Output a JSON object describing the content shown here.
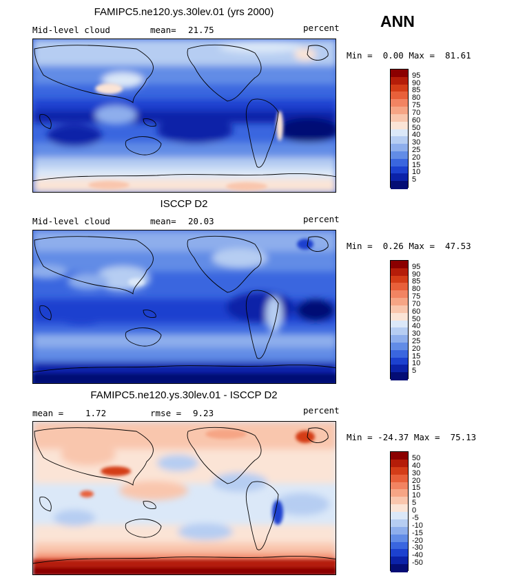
{
  "season": "ANN",
  "panels": [
    {
      "title": "FAMIPC5.ne120.ys.30lev.01 (yrs 2000)",
      "field": "Mid-level cloud",
      "stat1_label": "mean=",
      "stat1_value": "21.75",
      "stat2_label": "",
      "stat2_value": "",
      "units": "percent",
      "min_label": "Min =",
      "min_value": "0.00",
      "max_label": "Max =",
      "max_value": "81.61",
      "colorbar": {
        "levels": [
          "95",
          "90",
          "85",
          "80",
          "75",
          "70",
          "60",
          "50",
          "40",
          "30",
          "25",
          "20",
          "15",
          "10",
          "5"
        ],
        "colors": [
          "#8b0000",
          "#b51d09",
          "#d43d18",
          "#e8603a",
          "#f28462",
          "#f6a585",
          "#f9c6ad",
          "#fbe4d6",
          "#dbe8f8",
          "#b6cdf2",
          "#8eaeec",
          "#628ce6",
          "#3a66df",
          "#1c41cf",
          "#0b22a8",
          "#040d75"
        ]
      }
    },
    {
      "title": "ISCCP D2",
      "field": "Mid-level cloud",
      "stat1_label": "mean=",
      "stat1_value": "20.03",
      "stat2_label": "",
      "stat2_value": "",
      "units": "percent",
      "min_label": "Min =",
      "min_value": "0.26",
      "max_label": "Max =",
      "max_value": "47.53",
      "colorbar": {
        "levels": [
          "95",
          "90",
          "85",
          "80",
          "75",
          "70",
          "60",
          "50",
          "40",
          "30",
          "25",
          "20",
          "15",
          "10",
          "5"
        ],
        "colors": [
          "#8b0000",
          "#b51d09",
          "#d43d18",
          "#e8603a",
          "#f28462",
          "#f6a585",
          "#f9c6ad",
          "#fbe4d6",
          "#dbe8f8",
          "#b6cdf2",
          "#8eaeec",
          "#628ce6",
          "#3a66df",
          "#1c41cf",
          "#0b22a8",
          "#040d75"
        ]
      }
    },
    {
      "title": "FAMIPC5.ne120.ys.30lev.01 - ISCCP D2",
      "field": "",
      "stat1_label": "mean =",
      "stat1_value": "1.72",
      "stat2_label": "rmse =",
      "stat2_value": "9.23",
      "units": "percent",
      "min_label": "Min =",
      "min_value": "-24.37",
      "max_label": "Max =",
      "max_value": "75.13",
      "colorbar": {
        "levels": [
          "50",
          "40",
          "30",
          "20",
          "15",
          "10",
          "5",
          "0",
          "-5",
          "-10",
          "-15",
          "-20",
          "-30",
          "-40",
          "-50"
        ],
        "colors": [
          "#8b0000",
          "#b51d09",
          "#d43d18",
          "#e8603a",
          "#f28462",
          "#f6a585",
          "#f9c6ad",
          "#fbe4d6",
          "#dbe8f8",
          "#b6cdf2",
          "#8eaeec",
          "#628ce6",
          "#3a66df",
          "#1c41cf",
          "#0b22a8",
          "#040d75"
        ]
      }
    }
  ]
}
